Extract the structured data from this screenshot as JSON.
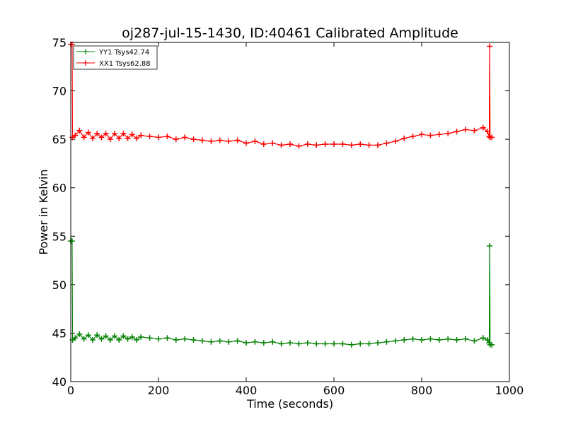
{
  "chart_data": {
    "type": "line",
    "title": "oj287-jul-15-1430, ID:40461 Calibrated Amplitude",
    "xlabel": "Time (seconds)",
    "ylabel": "Power in Kelvin",
    "xlim": [
      0,
      1000
    ],
    "ylim": [
      40,
      75
    ],
    "xticks": [
      "0",
      "200",
      "400",
      "600",
      "800",
      "1000"
    ],
    "yticks": [
      "40",
      "45",
      "50",
      "55",
      "60",
      "65",
      "70",
      "75"
    ],
    "grid": false,
    "legend_position": "top-left",
    "series": [
      {
        "name": "YY1 Tsys42.74",
        "color": "#008000",
        "marker": "+",
        "x": [
          0,
          3,
          4,
          10,
          20,
          30,
          40,
          50,
          60,
          70,
          80,
          90,
          100,
          110,
          120,
          130,
          140,
          150,
          160,
          180,
          200,
          220,
          240,
          260,
          280,
          300,
          320,
          340,
          360,
          380,
          400,
          420,
          440,
          460,
          480,
          500,
          520,
          540,
          560,
          580,
          600,
          620,
          640,
          660,
          680,
          700,
          720,
          740,
          760,
          780,
          800,
          820,
          840,
          860,
          880,
          900,
          920,
          940,
          950,
          954,
          955,
          956,
          960
        ],
        "values": [
          54.5,
          54.5,
          44.3,
          44.5,
          44.9,
          44.4,
          44.8,
          44.3,
          44.8,
          44.4,
          44.7,
          44.3,
          44.7,
          44.3,
          44.7,
          44.4,
          44.6,
          44.3,
          44.6,
          44.5,
          44.4,
          44.5,
          44.3,
          44.4,
          44.3,
          44.2,
          44.1,
          44.2,
          44.1,
          44.2,
          44.0,
          44.1,
          44.0,
          44.1,
          43.9,
          44.0,
          43.9,
          44.0,
          43.9,
          43.9,
          43.9,
          43.9,
          43.8,
          43.9,
          43.9,
          44.0,
          44.1,
          44.2,
          44.3,
          44.4,
          44.3,
          44.4,
          44.3,
          44.4,
          44.3,
          44.4,
          44.2,
          44.5,
          44.3,
          44.0,
          54.0,
          43.8,
          43.8
        ]
      },
      {
        "name": "XX1 Tsys62.88",
        "color": "#ff0000",
        "marker": "+",
        "x": [
          0,
          3,
          4,
          10,
          20,
          30,
          40,
          50,
          60,
          70,
          80,
          90,
          100,
          110,
          120,
          130,
          140,
          150,
          160,
          180,
          200,
          220,
          240,
          260,
          280,
          300,
          320,
          340,
          360,
          380,
          400,
          420,
          440,
          460,
          480,
          500,
          520,
          540,
          560,
          580,
          600,
          620,
          640,
          660,
          680,
          700,
          720,
          740,
          760,
          780,
          800,
          820,
          840,
          860,
          880,
          900,
          920,
          940,
          950,
          954,
          955,
          956,
          960
        ],
        "values": [
          74.8,
          74.8,
          65.2,
          65.4,
          65.9,
          65.2,
          65.7,
          65.1,
          65.6,
          65.2,
          65.6,
          65.0,
          65.6,
          65.1,
          65.6,
          65.1,
          65.5,
          65.1,
          65.4,
          65.3,
          65.2,
          65.3,
          65.0,
          65.2,
          65.0,
          64.9,
          64.8,
          64.9,
          64.8,
          64.9,
          64.6,
          64.8,
          64.5,
          64.6,
          64.4,
          64.5,
          64.3,
          64.5,
          64.4,
          64.5,
          64.5,
          64.5,
          64.4,
          64.5,
          64.4,
          64.4,
          64.6,
          64.8,
          65.1,
          65.3,
          65.5,
          65.4,
          65.5,
          65.6,
          65.8,
          66.0,
          65.9,
          66.2,
          65.8,
          65.3,
          74.6,
          65.2,
          65.2
        ]
      }
    ]
  }
}
